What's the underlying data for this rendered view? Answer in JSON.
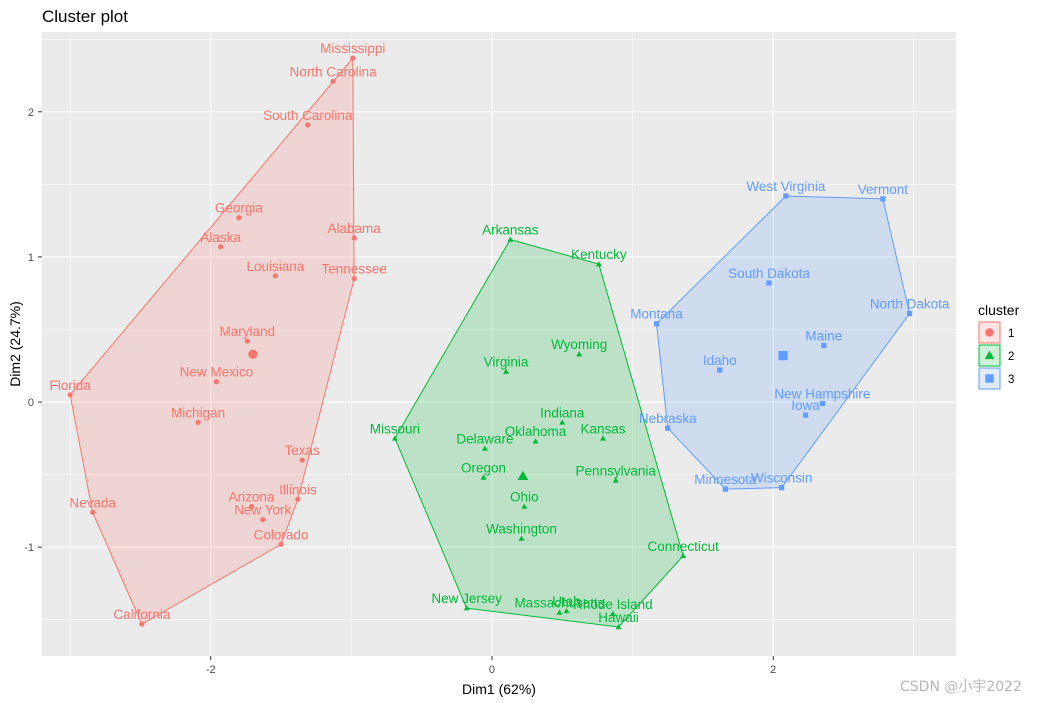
{
  "chart_data": {
    "type": "scatter",
    "title": "Cluster plot",
    "xlabel": "Dim1 (62%)",
    "ylabel": "Dim2 (24.7%)",
    "xlim": [
      -3.2,
      3.3
    ],
    "ylim": [
      -1.75,
      2.55
    ],
    "x_ticks": [
      -2,
      0,
      2
    ],
    "y_ticks": [
      -1,
      0,
      1,
      2
    ],
    "grid": true,
    "legend_position": "right",
    "legend_title": "cluster",
    "series": [
      {
        "name": "1",
        "color": "#F8766D",
        "shape": "circle",
        "centroid": [
          -1.7,
          0.33
        ],
        "hull": [
          "Florida",
          "Nevada",
          "California",
          "Colorado",
          "Illinois",
          "Tennessee",
          "Mississippi"
        ],
        "points": [
          {
            "label": "Mississippi",
            "x": -0.99,
            "y": 2.37
          },
          {
            "label": "North Carolina",
            "x": -1.13,
            "y": 2.21
          },
          {
            "label": "South Carolina",
            "x": -1.31,
            "y": 1.91
          },
          {
            "label": "Georgia",
            "x": -1.8,
            "y": 1.27
          },
          {
            "label": "Alabama",
            "x": -0.98,
            "y": 1.13
          },
          {
            "label": "Alaska",
            "x": -1.93,
            "y": 1.07
          },
          {
            "label": "Louisiana",
            "x": -1.54,
            "y": 0.87
          },
          {
            "label": "Tennessee",
            "x": -0.98,
            "y": 0.85
          },
          {
            "label": "Maryland",
            "x": -1.74,
            "y": 0.42
          },
          {
            "label": "New Mexico",
            "x": -1.96,
            "y": 0.14
          },
          {
            "label": "Florida",
            "x": -3.0,
            "y": 0.05
          },
          {
            "label": "Michigan",
            "x": -2.09,
            "y": -0.14
          },
          {
            "label": "Texas",
            "x": -1.35,
            "y": -0.4
          },
          {
            "label": "Illinois",
            "x": -1.38,
            "y": -0.67
          },
          {
            "label": "Nevada",
            "x": -2.84,
            "y": -0.76
          },
          {
            "label": "Arizona",
            "x": -1.71,
            "y": -0.72
          },
          {
            "label": "New York",
            "x": -1.63,
            "y": -0.81
          },
          {
            "label": "Colorado",
            "x": -1.5,
            "y": -0.98
          },
          {
            "label": "California",
            "x": -2.49,
            "y": -1.53
          }
        ]
      },
      {
        "name": "2",
        "color": "#00BA38",
        "shape": "triangle",
        "centroid": [
          0.22,
          -0.51
        ],
        "hull": [
          "Missouri",
          "Arkansas",
          "Kentucky",
          "Connecticut",
          "Hawaii",
          "New Jersey"
        ],
        "points": [
          {
            "label": "Arkansas",
            "x": 0.13,
            "y": 1.12
          },
          {
            "label": "Kentucky",
            "x": 0.76,
            "y": 0.95
          },
          {
            "label": "Wyoming",
            "x": 0.62,
            "y": 0.33
          },
          {
            "label": "Virginia",
            "x": 0.1,
            "y": 0.21
          },
          {
            "label": "Indiana",
            "x": 0.5,
            "y": -0.14
          },
          {
            "label": "Oklahoma",
            "x": 0.31,
            "y": -0.27
          },
          {
            "label": "Kansas",
            "x": 0.79,
            "y": -0.25
          },
          {
            "label": "Delaware",
            "x": -0.05,
            "y": -0.32
          },
          {
            "label": "Missouri",
            "x": -0.69,
            "y": -0.25
          },
          {
            "label": "Oregon",
            "x": -0.06,
            "y": -0.52
          },
          {
            "label": "Pennsylvania",
            "x": 0.88,
            "y": -0.54
          },
          {
            "label": "Ohio",
            "x": 0.23,
            "y": -0.72
          },
          {
            "label": "Washington",
            "x": 0.21,
            "y": -0.94
          },
          {
            "label": "Connecticut",
            "x": 1.36,
            "y": -1.06
          },
          {
            "label": "New Jersey",
            "x": -0.18,
            "y": -1.42
          },
          {
            "label": "Massachusetts",
            "x": 0.48,
            "y": -1.45
          },
          {
            "label": "Utah",
            "x": 0.53,
            "y": -1.44
          },
          {
            "label": "Rhode Island",
            "x": 0.86,
            "y": -1.46
          },
          {
            "label": "Hawaii",
            "x": 0.9,
            "y": -1.55
          }
        ]
      },
      {
        "name": "3",
        "color": "#619CFF",
        "shape": "square",
        "centroid": [
          2.07,
          0.32
        ],
        "hull": [
          "Montana",
          "West Virginia",
          "Vermont",
          "North Dakota",
          "Wisconsin",
          "Minnesota",
          "Nebraska"
        ],
        "points": [
          {
            "label": "West Virginia",
            "x": 2.09,
            "y": 1.42
          },
          {
            "label": "Vermont",
            "x": 2.78,
            "y": 1.4
          },
          {
            "label": "South Dakota",
            "x": 1.97,
            "y": 0.82
          },
          {
            "label": "North Dakota",
            "x": 2.97,
            "y": 0.61
          },
          {
            "label": "Montana",
            "x": 1.17,
            "y": 0.54
          },
          {
            "label": "Maine",
            "x": 2.36,
            "y": 0.39
          },
          {
            "label": "Idaho",
            "x": 1.62,
            "y": 0.22
          },
          {
            "label": "New Hampshire",
            "x": 2.35,
            "y": -0.01
          },
          {
            "label": "Iowa",
            "x": 2.23,
            "y": -0.09
          },
          {
            "label": "Nebraska",
            "x": 1.25,
            "y": -0.18
          },
          {
            "label": "Minnesota",
            "x": 1.66,
            "y": -0.6
          },
          {
            "label": "Wisconsin",
            "x": 2.06,
            "y": -0.59
          }
        ]
      }
    ]
  },
  "watermark": "CSDN @小宇2022"
}
